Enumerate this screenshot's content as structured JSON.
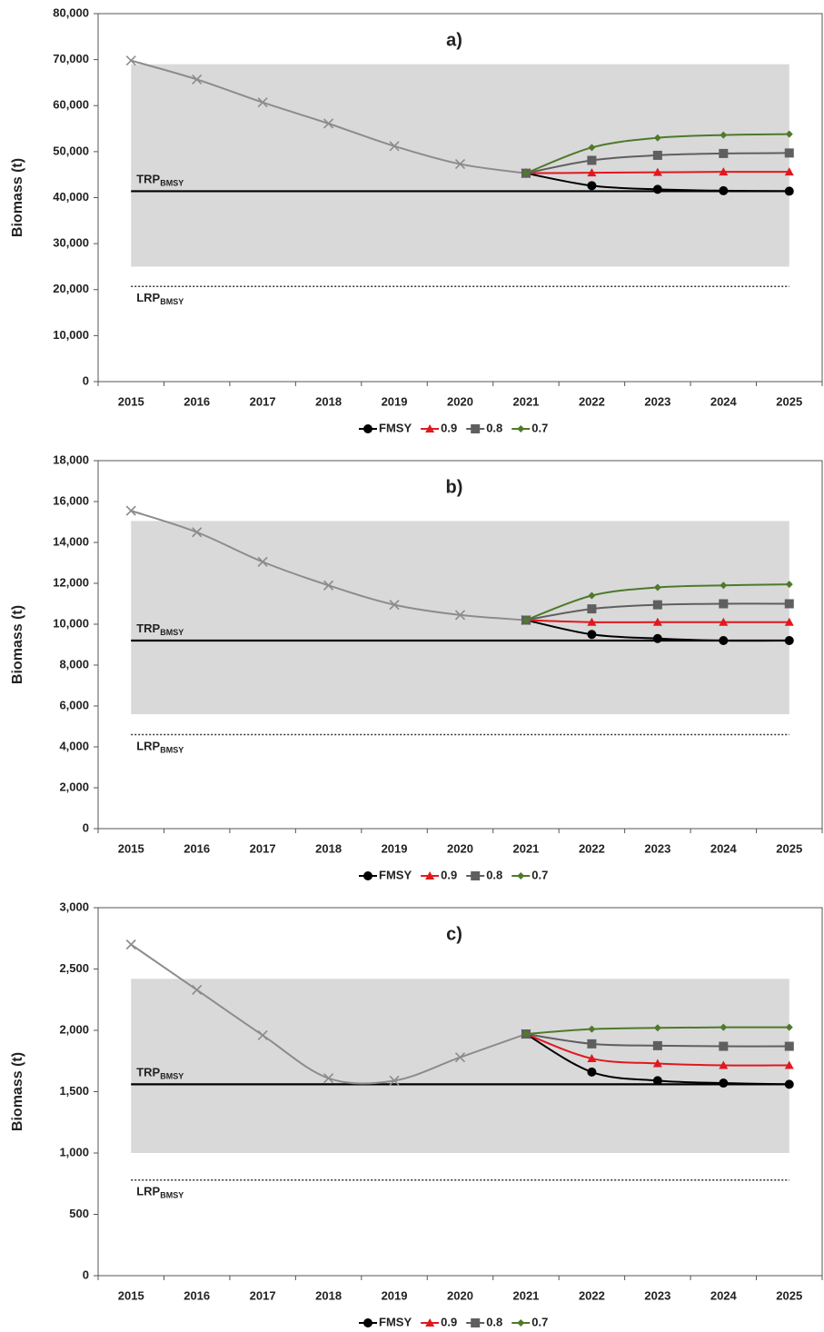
{
  "chart_data": [
    {
      "type": "line",
      "title": "a)",
      "ylabel": "Biomass (t)",
      "categories": [
        "2015",
        "2016",
        "2017",
        "2018",
        "2019",
        "2020",
        "2021",
        "2022",
        "2023",
        "2024",
        "2025"
      ],
      "ylim": [
        0,
        80000
      ],
      "yticks": [
        0,
        {
          "value": 10000,
          "label": "10,000"
        },
        {
          "value": 20000,
          "label": "20,000"
        },
        {
          "value": 30000,
          "label": "30,000"
        },
        {
          "value": 40000,
          "label": "40,000"
        },
        {
          "value": 50000,
          "label": "50,000"
        },
        {
          "value": 60000,
          "label": "60,000"
        },
        {
          "value": 70000,
          "label": "70,000"
        },
        {
          "value": 80000,
          "label": "80,000"
        }
      ],
      "band": [
        25000,
        69000
      ],
      "band_color": "#d9d9d9",
      "reference_lines": [
        {
          "label": "TRP",
          "subscript": "BMSY",
          "value": 41400,
          "style": "solid"
        },
        {
          "label": "LRP",
          "subscript": "BMSY",
          "value": 20700,
          "style": "dotted"
        }
      ],
      "legend": "bottom",
      "series": [
        {
          "color": "#8c8c8c",
          "marker": "x",
          "values": [
            69800,
            65700,
            60700,
            56100,
            51200,
            47300,
            45300,
            null,
            null,
            null,
            null
          ]
        },
        {
          "name": "FMSY",
          "color": "#000000",
          "marker": "circle",
          "values": [
            null,
            null,
            null,
            null,
            null,
            null,
            45300,
            42600,
            41800,
            41500,
            41400
          ]
        },
        {
          "name": "0.9",
          "color": "#e0191f",
          "marker": "triangle",
          "values": [
            null,
            null,
            null,
            null,
            null,
            null,
            45300,
            45400,
            45500,
            45600,
            45600
          ]
        },
        {
          "name": "0.8",
          "color": "#5f5f5f",
          "marker": "square",
          "values": [
            null,
            null,
            null,
            null,
            null,
            null,
            45300,
            48100,
            49200,
            49600,
            49700
          ]
        },
        {
          "name": "0.7",
          "color": "#4e7a2a",
          "marker": "diamond",
          "values": [
            null,
            null,
            null,
            null,
            null,
            null,
            45300,
            50900,
            53000,
            53600,
            53800
          ]
        }
      ]
    },
    {
      "type": "line",
      "title": "b)",
      "ylabel": "Biomass (t)",
      "categories": [
        "2015",
        "2016",
        "2017",
        "2018",
        "2019",
        "2020",
        "2021",
        "2022",
        "2023",
        "2024",
        "2025"
      ],
      "ylim": [
        0,
        18000
      ],
      "yticks": [
        0,
        {
          "value": 2000,
          "label": "2,000"
        },
        {
          "value": 4000,
          "label": "4,000"
        },
        {
          "value": 6000,
          "label": "6,000"
        },
        {
          "value": 8000,
          "label": "8,000"
        },
        {
          "value": 10000,
          "label": "10,000"
        },
        {
          "value": 12000,
          "label": "12,000"
        },
        {
          "value": 14000,
          "label": "14,000"
        },
        {
          "value": 16000,
          "label": "16,000"
        },
        {
          "value": 18000,
          "label": "18,000"
        }
      ],
      "band": [
        5600,
        15050
      ],
      "band_color": "#d9d9d9",
      "reference_lines": [
        {
          "label": "TRP",
          "subscript": "BMSY",
          "value": 9200,
          "style": "solid"
        },
        {
          "label": "LRP",
          "subscript": "BMSY",
          "value": 4600,
          "style": "dotted"
        }
      ],
      "legend": "bottom",
      "series": [
        {
          "color": "#8c8c8c",
          "marker": "x",
          "values": [
            15550,
            14500,
            13050,
            11900,
            10950,
            10450,
            10200,
            null,
            null,
            null,
            null
          ]
        },
        {
          "name": "FMSY",
          "color": "#000000",
          "marker": "circle",
          "values": [
            null,
            null,
            null,
            null,
            null,
            null,
            10200,
            9500,
            9300,
            9200,
            9200
          ]
        },
        {
          "name": "0.9",
          "color": "#e0191f",
          "marker": "triangle",
          "values": [
            null,
            null,
            null,
            null,
            null,
            null,
            10200,
            10100,
            10100,
            10100,
            10100
          ]
        },
        {
          "name": "0.8",
          "color": "#5f5f5f",
          "marker": "square",
          "values": [
            null,
            null,
            null,
            null,
            null,
            null,
            10200,
            10750,
            10950,
            11000,
            11000
          ]
        },
        {
          "name": "0.7",
          "color": "#4e7a2a",
          "marker": "diamond",
          "values": [
            null,
            null,
            null,
            null,
            null,
            null,
            10200,
            11400,
            11800,
            11900,
            11950
          ]
        }
      ]
    },
    {
      "type": "line",
      "title": "c)",
      "ylabel": "Biomass (t)",
      "categories": [
        "2015",
        "2016",
        "2017",
        "2018",
        "2019",
        "2020",
        "2021",
        "2022",
        "2023",
        "2024",
        "2025"
      ],
      "ylim": [
        0,
        3000
      ],
      "yticks": [
        0,
        500,
        {
          "value": 1000,
          "label": "1,000"
        },
        {
          "value": 1500,
          "label": "1,500"
        },
        {
          "value": 2000,
          "label": "2,000"
        },
        {
          "value": 2500,
          "label": "2,500"
        },
        {
          "value": 3000,
          "label": "3,000"
        }
      ],
      "band": [
        1000,
        2420
      ],
      "band_color": "#d9d9d9",
      "reference_lines": [
        {
          "label": "TRP",
          "subscript": "BMSY",
          "value": 1560,
          "style": "solid"
        },
        {
          "label": "LRP",
          "subscript": "BMSY",
          "value": 780,
          "style": "dotted"
        }
      ],
      "legend": "bottom",
      "series": [
        {
          "color": "#8c8c8c",
          "marker": "x",
          "values": [
            2700,
            2330,
            1960,
            1610,
            1590,
            1780,
            1970,
            null,
            null,
            null,
            null
          ]
        },
        {
          "name": "FMSY",
          "color": "#000000",
          "marker": "circle",
          "values": [
            null,
            null,
            null,
            null,
            null,
            null,
            1970,
            1660,
            1590,
            1570,
            1560
          ]
        },
        {
          "name": "0.9",
          "color": "#e0191f",
          "marker": "triangle",
          "values": [
            null,
            null,
            null,
            null,
            null,
            null,
            1970,
            1770,
            1730,
            1715,
            1715
          ]
        },
        {
          "name": "0.8",
          "color": "#5f5f5f",
          "marker": "square",
          "values": [
            null,
            null,
            null,
            null,
            null,
            null,
            1970,
            1890,
            1875,
            1870,
            1870
          ]
        },
        {
          "name": "0.7",
          "color": "#4e7a2a",
          "marker": "diamond",
          "values": [
            null,
            null,
            null,
            null,
            null,
            null,
            1970,
            2010,
            2020,
            2025,
            2025
          ]
        }
      ]
    }
  ]
}
